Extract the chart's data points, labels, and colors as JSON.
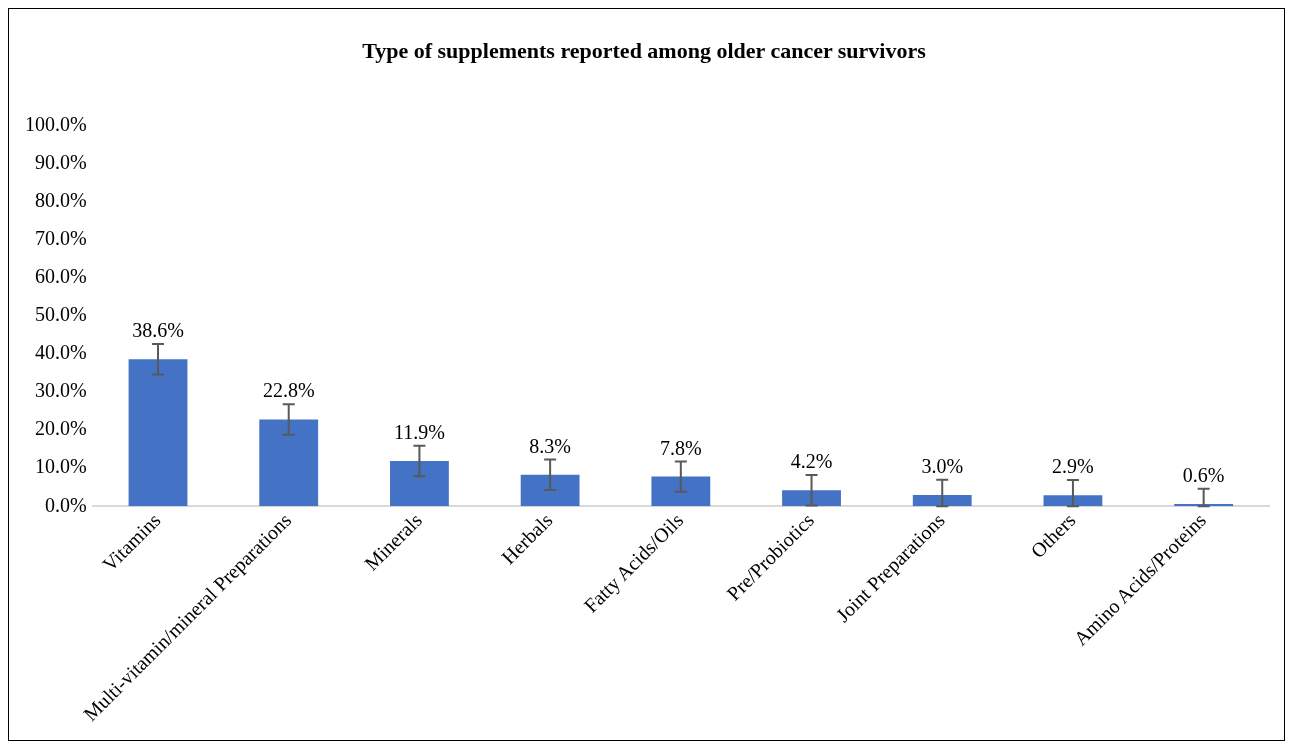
{
  "chart_data": {
    "type": "bar",
    "title": "Type of supplements reported among older cancer survivors",
    "categories": [
      "Vitamins",
      "Multi-vitamin/mineral Preparations",
      "Minerals",
      "Herbals",
      "Fatty Acids/Oils",
      "Pre/Probiotics",
      "Joint Preparations",
      "Others",
      "Amino Acids/Proteins"
    ],
    "values": [
      38.6,
      22.8,
      11.9,
      8.3,
      7.8,
      4.2,
      3.0,
      2.9,
      0.6
    ],
    "errors": [
      [
        34.6,
        42.6
      ],
      [
        18.8,
        26.8
      ],
      [
        7.9,
        15.9
      ],
      [
        4.3,
        12.3
      ],
      [
        3.8,
        11.8
      ],
      [
        0.2,
        8.2
      ],
      [
        0,
        7.0
      ],
      [
        0,
        6.9
      ],
      [
        0,
        4.6
      ]
    ],
    "value_labels": [
      "38.6%",
      "22.8%",
      "11.9%",
      "8.3%",
      "7.8%",
      "4.2%",
      "3.0%",
      "2.9%",
      "0.6%"
    ],
    "color": "#4472c4",
    "ylim": [
      0,
      100
    ],
    "yticks": [
      {
        "value": 0,
        "label": "0.0%"
      },
      {
        "value": 10,
        "label": "10.0%"
      },
      {
        "value": 20,
        "label": "20.0%"
      },
      {
        "value": 30,
        "label": "30.0%"
      },
      {
        "value": 40,
        "label": "40.0%"
      },
      {
        "value": 50,
        "label": "50.0%"
      },
      {
        "value": 60,
        "label": "60.0%"
      },
      {
        "value": 70,
        "label": "70.0%"
      },
      {
        "value": 80,
        "label": "80.0%"
      },
      {
        "value": 90,
        "label": "90.0%"
      },
      {
        "value": 100,
        "label": "100.0%"
      }
    ],
    "grid": false,
    "legend": false
  }
}
